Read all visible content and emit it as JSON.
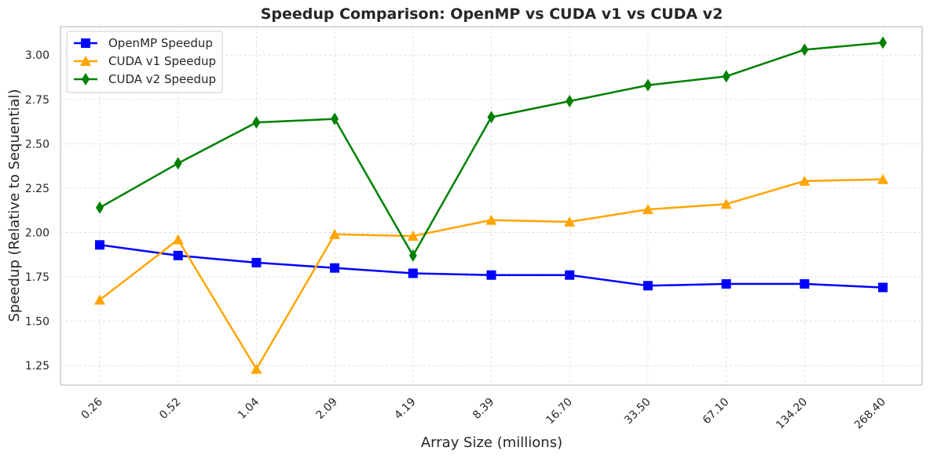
{
  "chart_data": {
    "type": "line",
    "title": "Speedup Comparison: OpenMP vs CUDA v1 vs CUDA v2",
    "xlabel": "Array Size (millions)",
    "ylabel": "Speedup (Relative to Sequential)",
    "categories": [
      "0.26",
      "0.52",
      "1.04",
      "2.09",
      "4.19",
      "8.39",
      "16.70",
      "33.50",
      "67.10",
      "134.20",
      "268.40"
    ],
    "ylim": [
      1.14,
      3.16
    ],
    "yticks": [
      "1.25",
      "1.50",
      "1.75",
      "2.00",
      "2.25",
      "2.50",
      "2.75",
      "3.00"
    ],
    "grid": true,
    "legend_position": "top-left",
    "series": [
      {
        "name": "OpenMP Speedup",
        "color": "#0000ff",
        "marker": "square",
        "values": [
          1.93,
          1.87,
          1.83,
          1.8,
          1.77,
          1.76,
          1.76,
          1.7,
          1.71,
          1.71,
          1.69
        ]
      },
      {
        "name": "CUDA v1 Speedup",
        "color": "#ffa500",
        "marker": "triangle",
        "values": [
          1.62,
          1.96,
          1.23,
          1.99,
          1.98,
          2.07,
          2.06,
          2.13,
          2.16,
          2.29,
          2.3
        ]
      },
      {
        "name": "CUDA v2 Speedup",
        "color": "#008000",
        "marker": "diamond",
        "values": [
          2.14,
          2.39,
          2.62,
          2.64,
          1.87,
          2.65,
          2.74,
          2.83,
          2.88,
          3.03,
          3.07
        ]
      }
    ]
  }
}
